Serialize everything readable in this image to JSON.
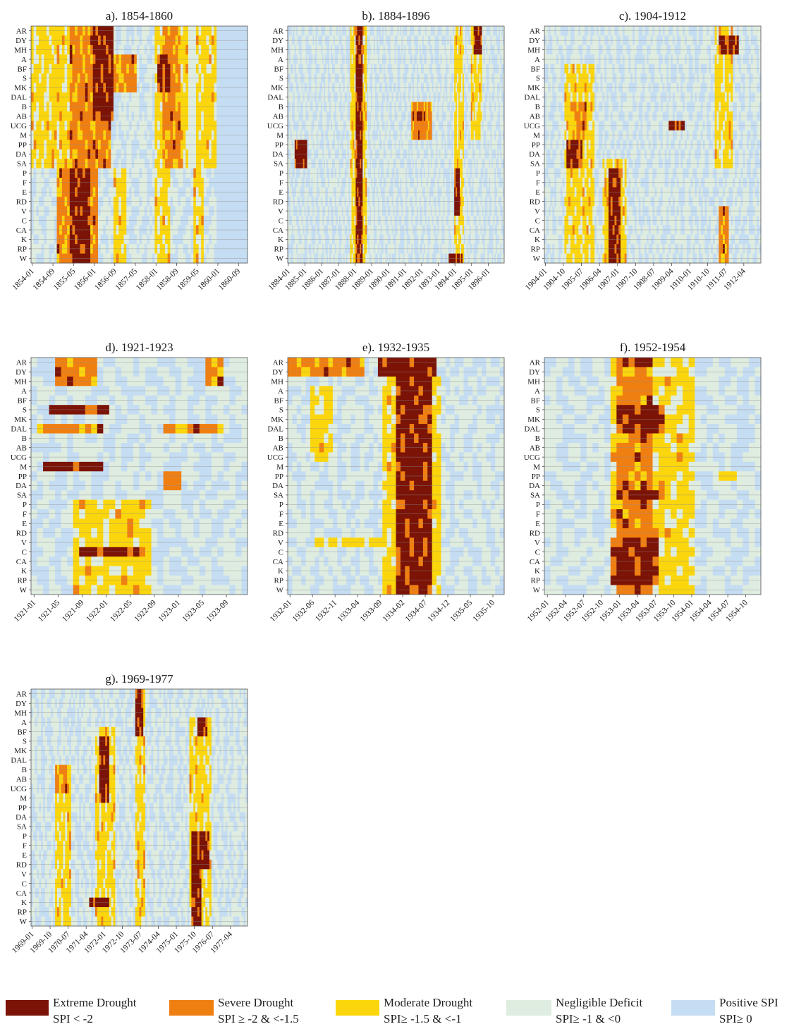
{
  "categories": [
    "Extreme Drought",
    "Severe Drought",
    "Moderate Drought",
    "Negligible Deficit",
    "Positive SPI"
  ],
  "colors": {
    "extreme": "#7b1307",
    "severe": "#f07f12",
    "moderate": "#fbd60c",
    "negligible": "#dfece0",
    "positive": "#c5ddf2",
    "gridline": "#8c8c8c",
    "frame": "#555555"
  },
  "legend": [
    {
      "label": "Extreme Drought",
      "range": "SPI < -2",
      "color": "#7b1307"
    },
    {
      "label": "Severe Drought",
      "range": "SPI ≥ -2 & <-1.5",
      "color": "#f07f12"
    },
    {
      "label": "Moderate Drought",
      "range": "SPI≥ -1.5 & <-1",
      "color": "#fbd60c"
    },
    {
      "label": "Negligible Deficit",
      "range": "SPI≥ -1 & <0",
      "color": "#dfece0"
    },
    {
      "label": "Positive SPI",
      "range": "SPI≥ 0",
      "color": "#c5ddf2"
    }
  ],
  "chart_data": [
    {
      "type": "heatmap",
      "title": "a). 1854-1860",
      "rows": [
        "AR",
        "DY",
        "MH",
        "A",
        "BF",
        "S",
        "MK",
        "DAL",
        "B",
        "AB",
        "UCG",
        "M",
        "PP",
        "DA",
        "SA",
        "P",
        "F",
        "E",
        "RD",
        "V",
        "C",
        "CA",
        "K",
        "RP",
        "W"
      ],
      "x_start": "1854-01",
      "x_end": "1860-12",
      "x_ticks": [
        "1854-01",
        "1854-09",
        "1855-05",
        "1856-01",
        "1856-09",
        "1857-05",
        "1858-01",
        "1858-09",
        "1859-05",
        "1860-01",
        "1860-09"
      ],
      "blocks": [
        {
          "rows": [
            0,
            14
          ],
          "from": "1854-01",
          "to": "1855-04",
          "level": 3
        },
        {
          "rows": [
            0,
            14
          ],
          "from": "1855-04",
          "to": "1856-08",
          "level": 4
        },
        {
          "rows": [
            0,
            9
          ],
          "from": "1856-01",
          "to": "1856-09",
          "level": 5
        },
        {
          "rows": [
            3,
            6
          ],
          "from": "1856-08",
          "to": "1857-06",
          "level": 4
        },
        {
          "rows": [
            0,
            14
          ],
          "from": "1858-01",
          "to": "1859-02",
          "level": 3
        },
        {
          "rows": [
            0,
            14
          ],
          "from": "1858-04",
          "to": "1858-11",
          "level": 4
        },
        {
          "rows": [
            3,
            6
          ],
          "from": "1858-02",
          "to": "1858-07",
          "level": 5
        },
        {
          "rows": [
            0,
            14
          ],
          "from": "1859-02",
          "to": "1859-05",
          "level": 2
        },
        {
          "rows": [
            0,
            14
          ],
          "from": "1859-05",
          "to": "1860-01",
          "level": 3
        },
        {
          "rows": [
            15,
            24
          ],
          "from": "1854-11",
          "to": "1855-04",
          "level": 4
        },
        {
          "rows": [
            15,
            24
          ],
          "from": "1855-04",
          "to": "1855-12",
          "level": 5
        },
        {
          "rows": [
            15,
            24
          ],
          "from": "1855-12",
          "to": "1856-03",
          "level": 4
        },
        {
          "rows": [
            15,
            24
          ],
          "from": "1856-09",
          "to": "1857-02",
          "level": 3
        },
        {
          "rows": [
            15,
            24
          ],
          "from": "1858-01",
          "to": "1858-07",
          "level": 3
        },
        {
          "rows": [
            15,
            24
          ],
          "from": "1859-04",
          "to": "1859-08",
          "level": 3
        },
        {
          "rows": [
            0,
            24
          ],
          "from": "1860-01",
          "to": "1861-01",
          "level": 1
        }
      ]
    },
    {
      "type": "heatmap",
      "title": "b). 1884-1896",
      "rows": [
        "AR",
        "DY",
        "MH",
        "A",
        "BF",
        "S",
        "MK",
        "DAL",
        "B",
        "AB",
        "UCG",
        "M",
        "PP",
        "DA",
        "SA",
        "P",
        "F",
        "E",
        "RD",
        "V",
        "C",
        "CA",
        "K",
        "RP",
        "W"
      ],
      "x_start": "1884-01",
      "x_end": "1896-12",
      "x_ticks": [
        "1884-01",
        "1885-01",
        "1886-01",
        "1887-01",
        "1888-01",
        "1889-01",
        "1890-01",
        "1891-01",
        "1892-01",
        "1893-01",
        "1894-01",
        "1895-01",
        "1896-01"
      ],
      "blocks": [
        {
          "rows": [
            0,
            24
          ],
          "from": "1887-10",
          "to": "1888-02",
          "level": 3
        },
        {
          "rows": [
            0,
            24
          ],
          "from": "1888-02",
          "to": "1888-07",
          "level": 5
        },
        {
          "rows": [
            0,
            24
          ],
          "from": "1888-07",
          "to": "1888-10",
          "level": 3
        },
        {
          "rows": [
            12,
            14
          ],
          "from": "1884-06",
          "to": "1885-03",
          "level": 5
        },
        {
          "rows": [
            8,
            11
          ],
          "from": "1891-06",
          "to": "1892-09",
          "level": 4
        },
        {
          "rows": [
            9,
            9
          ],
          "from": "1891-09",
          "to": "1892-05",
          "level": 5
        },
        {
          "rows": [
            0,
            24
          ],
          "from": "1894-01",
          "to": "1894-08",
          "level": 3
        },
        {
          "rows": [
            15,
            19
          ],
          "from": "1894-01",
          "to": "1894-05",
          "level": 5
        },
        {
          "rows": [
            0,
            11
          ],
          "from": "1895-01",
          "to": "1895-09",
          "level": 3
        },
        {
          "rows": [
            0,
            2
          ],
          "from": "1895-03",
          "to": "1895-09",
          "level": 5
        },
        {
          "rows": [
            24,
            24
          ],
          "from": "1893-09",
          "to": "1894-07",
          "level": 5
        }
      ]
    },
    {
      "type": "heatmap",
      "title": "c). 1904-1912",
      "rows": [
        "AR",
        "DY",
        "MH",
        "A",
        "BF",
        "S",
        "MK",
        "DAL",
        "B",
        "AB",
        "UCG",
        "M",
        "PP",
        "DA",
        "SA",
        "P",
        "F",
        "E",
        "RD",
        "V",
        "C",
        "CA",
        "K",
        "RP",
        "W"
      ],
      "x_start": "1904-01",
      "x_end": "1912-12",
      "x_ticks": [
        "1904-01",
        "1904-10",
        "1905-07",
        "1906-04",
        "1907-01",
        "1907-10",
        "1908-07",
        "1909-04",
        "1910-01",
        "1910-10",
        "1911-07",
        "1912-04"
      ],
      "blocks": [
        {
          "rows": [
            4,
            24
          ],
          "from": "1904-11",
          "to": "1906-02",
          "level": 3
        },
        {
          "rows": [
            12,
            14
          ],
          "from": "1904-12",
          "to": "1905-08",
          "level": 5
        },
        {
          "rows": [
            8,
            11
          ],
          "from": "1905-03",
          "to": "1905-10",
          "level": 4
        },
        {
          "rows": [
            14,
            24
          ],
          "from": "1906-06",
          "to": "1907-06",
          "level": 3
        },
        {
          "rows": [
            15,
            24
          ],
          "from": "1906-09",
          "to": "1907-03",
          "level": 5
        },
        {
          "rows": [
            10,
            10
          ],
          "from": "1909-03",
          "to": "1909-11",
          "level": 5
        },
        {
          "rows": [
            0,
            14
          ],
          "from": "1911-02",
          "to": "1911-11",
          "level": 3
        },
        {
          "rows": [
            1,
            2
          ],
          "from": "1911-04",
          "to": "1912-02",
          "level": 5
        },
        {
          "rows": [
            19,
            24
          ],
          "from": "1911-04",
          "to": "1911-09",
          "level": 4
        }
      ]
    },
    {
      "type": "heatmap",
      "title": "d). 1921-1923",
      "rows": [
        "AR",
        "DY",
        "MH",
        "A",
        "BF",
        "S",
        "MK",
        "DAL",
        "B",
        "AB",
        "UCG",
        "M",
        "PP",
        "DA",
        "SA",
        "P",
        "F",
        "E",
        "RD",
        "V",
        "C",
        "CA",
        "K",
        "RP",
        "W"
      ],
      "x_start": "1921-01",
      "x_end": "1923-12",
      "x_ticks": [
        "1921-01",
        "1921-05",
        "1921-09",
        "1922-01",
        "1922-05",
        "1922-09",
        "1923-01",
        "1923-05",
        "1923-09"
      ],
      "blocks": [
        {
          "rows": [
            0,
            2
          ],
          "from": "1921-05",
          "to": "1921-12",
          "level": 4
        },
        {
          "rows": [
            5,
            5
          ],
          "from": "1921-04",
          "to": "1922-02",
          "level": 5
        },
        {
          "rows": [
            7,
            7
          ],
          "from": "1921-02",
          "to": "1922-01",
          "level": 4
        },
        {
          "rows": [
            11,
            11
          ],
          "from": "1921-03",
          "to": "1922-01",
          "level": 5
        },
        {
          "rows": [
            15,
            24
          ],
          "from": "1921-08",
          "to": "1922-09",
          "level": 3
        },
        {
          "rows": [
            20,
            20
          ],
          "from": "1921-09",
          "to": "1922-08",
          "level": 5
        },
        {
          "rows": [
            12,
            13
          ],
          "from": "1922-11",
          "to": "1923-02",
          "level": 4
        },
        {
          "rows": [
            0,
            2
          ],
          "from": "1923-06",
          "to": "1923-09",
          "level": 4
        },
        {
          "rows": [
            7,
            7
          ],
          "from": "1922-11",
          "to": "1923-09",
          "level": 4
        }
      ]
    },
    {
      "type": "heatmap",
      "title": "e). 1932-1935",
      "rows": [
        "AR",
        "DY",
        "MH",
        "A",
        "BF",
        "S",
        "MK",
        "DAL",
        "B",
        "AB",
        "UCG",
        "M",
        "PP",
        "DA",
        "SA",
        "P",
        "F",
        "E",
        "RD",
        "V",
        "C",
        "CA",
        "K",
        "RP",
        "W"
      ],
      "x_start": "1932-01",
      "x_end": "1935-12",
      "x_ticks": [
        "1932-01",
        "1932-06",
        "1932-11",
        "1933-04",
        "1933-09",
        "1934-02",
        "1934-07",
        "1934-12",
        "1935-05",
        "1935-10"
      ],
      "blocks": [
        {
          "rows": [
            0,
            1
          ],
          "from": "1932-01",
          "to": "1933-06",
          "level": 4
        },
        {
          "rows": [
            0,
            1
          ],
          "from": "1933-09",
          "to": "1934-10",
          "level": 5
        },
        {
          "rows": [
            2,
            24
          ],
          "from": "1933-10",
          "to": "1934-11",
          "level": 3
        },
        {
          "rows": [
            2,
            24
          ],
          "from": "1934-01",
          "to": "1934-09",
          "level": 5
        },
        {
          "rows": [
            19,
            19
          ],
          "from": "1932-07",
          "to": "1933-10",
          "level": 3
        },
        {
          "rows": [
            3,
            10
          ],
          "from": "1932-06",
          "to": "1932-11",
          "level": 3
        }
      ]
    },
    {
      "type": "heatmap",
      "title": "f). 1952-1954",
      "rows": [
        "AR",
        "DY",
        "MH",
        "A",
        "BF",
        "S",
        "MK",
        "DAL",
        "B",
        "AB",
        "UCG",
        "M",
        "PP",
        "DA",
        "SA",
        "P",
        "F",
        "E",
        "RD",
        "V",
        "C",
        "CA",
        "K",
        "RP",
        "W"
      ],
      "x_start": "1952-01",
      "x_end": "1954-12",
      "x_ticks": [
        "1952-01",
        "1952-04",
        "1952-07",
        "1952-10",
        "1953-01",
        "1953-04",
        "1953-07",
        "1953-10",
        "1954-01",
        "1954-04",
        "1954-07",
        "1954-10"
      ],
      "blocks": [
        {
          "rows": [
            0,
            24
          ],
          "from": "1952-12",
          "to": "1953-09",
          "level": 3
        },
        {
          "rows": [
            0,
            24
          ],
          "from": "1953-01",
          "to": "1953-07",
          "level": 4
        },
        {
          "rows": [
            0,
            0
          ],
          "from": "1953-02",
          "to": "1953-07",
          "level": 5
        },
        {
          "rows": [
            5,
            7
          ],
          "from": "1953-01",
          "to": "1953-09",
          "level": 5
        },
        {
          "rows": [
            14,
            14
          ],
          "from": "1953-01",
          "to": "1953-09",
          "level": 5
        },
        {
          "rows": [
            19,
            23
          ],
          "from": "1952-12",
          "to": "1953-08",
          "level": 5
        },
        {
          "rows": [
            0,
            24
          ],
          "from": "1953-09",
          "to": "1954-02",
          "level": 3
        },
        {
          "rows": [
            12,
            12
          ],
          "from": "1954-06",
          "to": "1954-09",
          "level": 3
        }
      ]
    },
    {
      "type": "heatmap",
      "title": "g). 1969-1977",
      "rows": [
        "AR",
        "DY",
        "MH",
        "A",
        "BF",
        "S",
        "MK",
        "DAL",
        "B",
        "AB",
        "UCG",
        "M",
        "PP",
        "DA",
        "SA",
        "P",
        "F",
        "E",
        "RD",
        "V",
        "C",
        "CA",
        "K",
        "RP",
        "W"
      ],
      "x_start": "1969-01",
      "x_end": "1977-12",
      "x_ticks": [
        "1969-01",
        "1969-10",
        "1970-07",
        "1971-04",
        "1972-01",
        "1972-10",
        "1973-07",
        "1974-04",
        "1975-01",
        "1975-10",
        "1976-07",
        "1977-04"
      ],
      "blocks": [
        {
          "rows": [
            8,
            24
          ],
          "from": "1970-01",
          "to": "1970-09",
          "level": 3
        },
        {
          "rows": [
            8,
            10
          ],
          "from": "1970-01",
          "to": "1970-07",
          "level": 4
        },
        {
          "rows": [
            4,
            24
          ],
          "from": "1971-09",
          "to": "1972-07",
          "level": 3
        },
        {
          "rows": [
            5,
            11
          ],
          "from": "1971-11",
          "to": "1972-04",
          "level": 5
        },
        {
          "rows": [
            22,
            22
          ],
          "from": "1971-06",
          "to": "1972-04",
          "level": 5
        },
        {
          "rows": [
            0,
            24
          ],
          "from": "1973-05",
          "to": "1973-10",
          "level": 3
        },
        {
          "rows": [
            0,
            4
          ],
          "from": "1973-05",
          "to": "1973-09",
          "level": 5
        },
        {
          "rows": [
            3,
            24
          ],
          "from": "1975-08",
          "to": "1976-07",
          "level": 3
        },
        {
          "rows": [
            15,
            18
          ],
          "from": "1975-09",
          "to": "1976-06",
          "level": 5
        },
        {
          "rows": [
            3,
            4
          ],
          "from": "1975-12",
          "to": "1976-05",
          "level": 5
        },
        {
          "rows": [
            19,
            24
          ],
          "from": "1975-09",
          "to": "1976-02",
          "level": 5
        }
      ]
    }
  ]
}
